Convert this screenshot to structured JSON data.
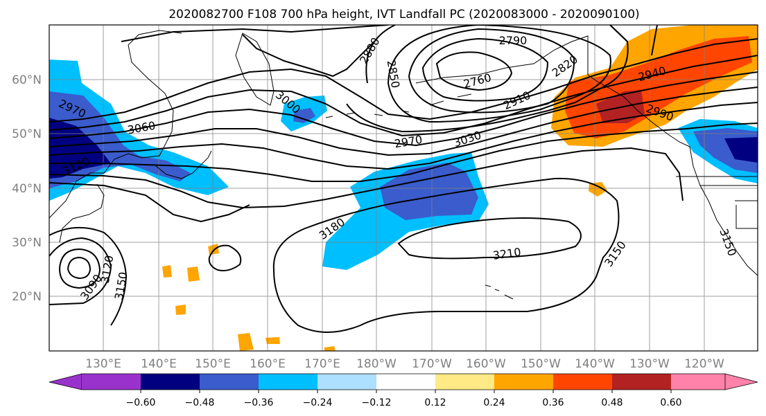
{
  "title": "2020082700 F108 700 hPa height, IVT Landfall PC (2020083000 - 2020090100)",
  "lat_labels": [
    "60°N",
    "50°N",
    "40°N",
    "30°N",
    "20°N"
  ],
  "lon_labels": [
    "130°E",
    "140°E",
    "150°E",
    "160°E",
    "170°E",
    "180°W",
    "170°W",
    "160°W",
    "150°W",
    "140°W",
    "130°W",
    "120°W"
  ],
  "contour_labels": [
    "2790",
    "2880",
    "2850",
    "2760",
    "2820",
    "2910",
    "2940",
    "2990",
    "2970",
    "3030",
    "3060",
    "2970",
    "3120",
    "3000",
    "3180",
    "3210",
    "3150",
    "3150",
    "3090",
    "3120",
    "3150"
  ],
  "colorbar": {
    "colors": [
      "#9932CC",
      "#000080",
      "#3A5CCC",
      "#00BFFF",
      "#ADDFFF",
      "#FFFFFF",
      "#FFEA85",
      "#FFA500",
      "#FF4500",
      "#B22222",
      "#FF82AB"
    ],
    "tick_labels": [
      "−0.60",
      "−0.48",
      "−0.36",
      "−0.24",
      "−0.12",
      "0.12",
      "0.24",
      "0.36",
      "0.48",
      "0.60"
    ]
  }
}
